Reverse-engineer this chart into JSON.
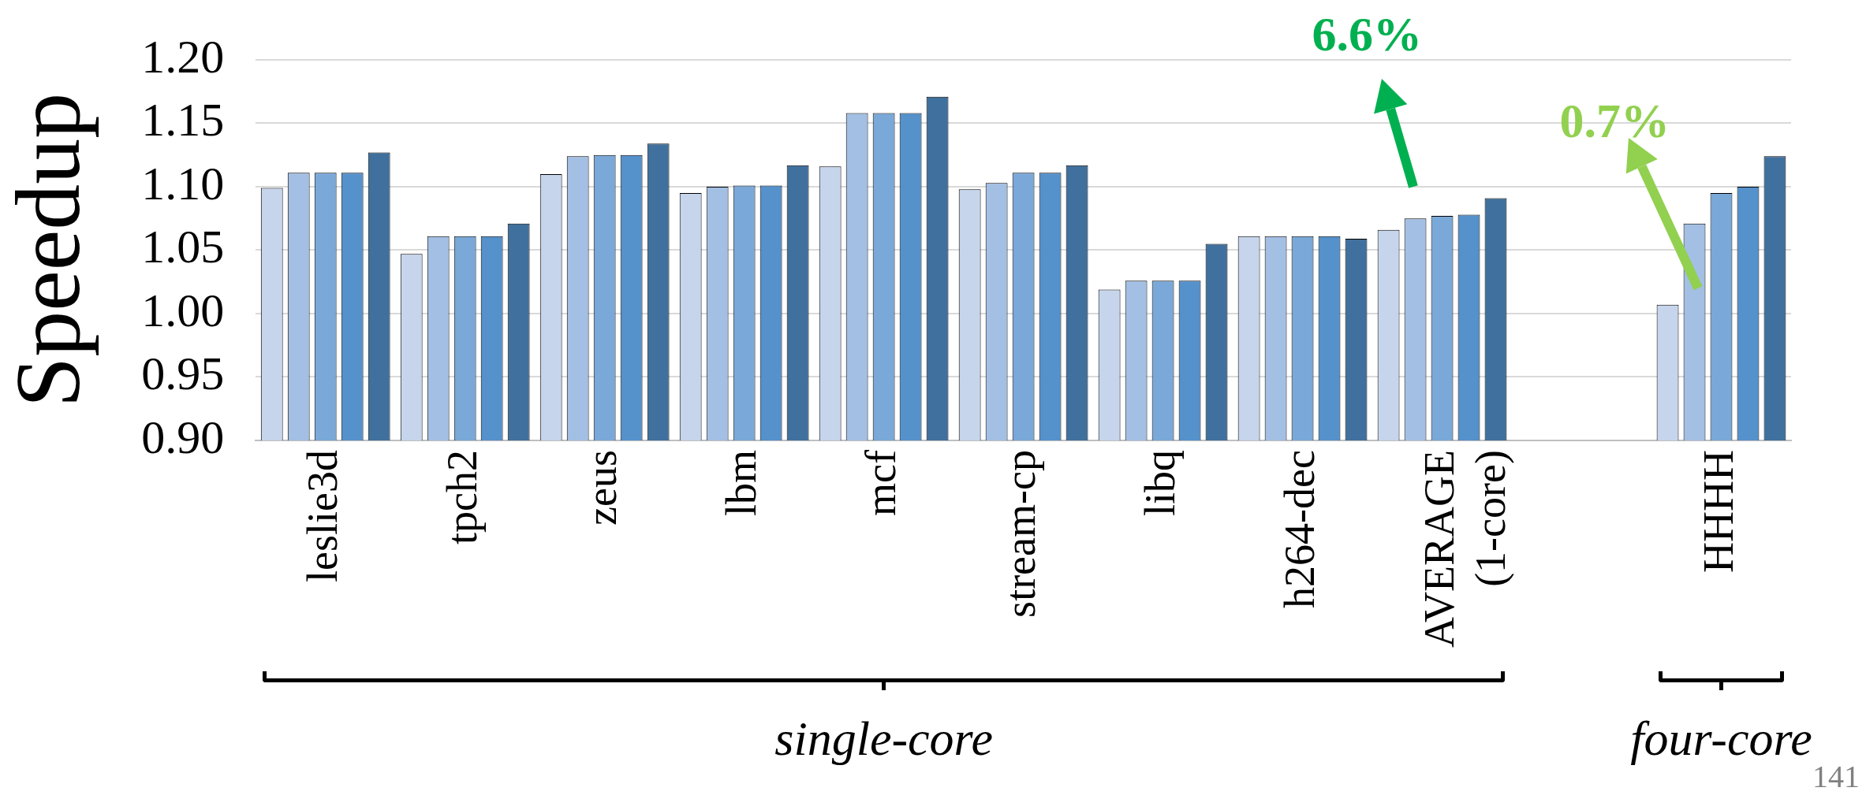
{
  "chart_data": {
    "type": "bar",
    "ylabel": "Speedup",
    "categories": [
      "leslie3d",
      "tpch2",
      "zeus",
      "lbm",
      "mcf",
      "stream-cp",
      "libq",
      "h264-dec",
      "AVERAGE (1-core)",
      null,
      "HHHH"
    ],
    "series": [
      {
        "color": "#c6d5ec",
        "values": [
          1.099,
          1.047,
          1.11,
          1.095,
          1.116,
          1.098,
          1.019,
          1.061,
          1.066,
          null,
          1.007
        ]
      },
      {
        "color": "#a3bfe3",
        "values": [
          1.111,
          1.061,
          1.124,
          1.1,
          1.158,
          1.103,
          1.026,
          1.061,
          1.075,
          null,
          1.071
        ]
      },
      {
        "color": "#7aa8d8",
        "values": [
          1.111,
          1.061,
          1.125,
          1.101,
          1.158,
          1.111,
          1.026,
          1.061,
          1.077,
          null,
          1.095
        ]
      },
      {
        "color": "#5591cb",
        "values": [
          1.111,
          1.061,
          1.125,
          1.101,
          1.158,
          1.111,
          1.026,
          1.061,
          1.078,
          null,
          1.1
        ]
      },
      {
        "color": "#40709d",
        "values": [
          1.127,
          1.071,
          1.134,
          1.117,
          1.171,
          1.117,
          1.055,
          1.059,
          1.091,
          null,
          1.124
        ]
      }
    ],
    "ylim": [
      0.9,
      1.2
    ],
    "yticks": [
      {
        "value": 0.9,
        "label": "0.90"
      },
      {
        "value": 0.95,
        "label": "0.95"
      },
      {
        "value": 1.0,
        "label": "1.00"
      },
      {
        "value": 1.05,
        "label": "1.05"
      },
      {
        "value": 1.1,
        "label": "1.10"
      },
      {
        "value": 1.15,
        "label": "1.15"
      },
      {
        "value": 1.2,
        "label": "1.20"
      }
    ],
    "grid": "y",
    "legend": false,
    "annotations": [
      "6.6%",
      "0.7%",
      "single-core",
      "four-core",
      "141"
    ]
  }
}
